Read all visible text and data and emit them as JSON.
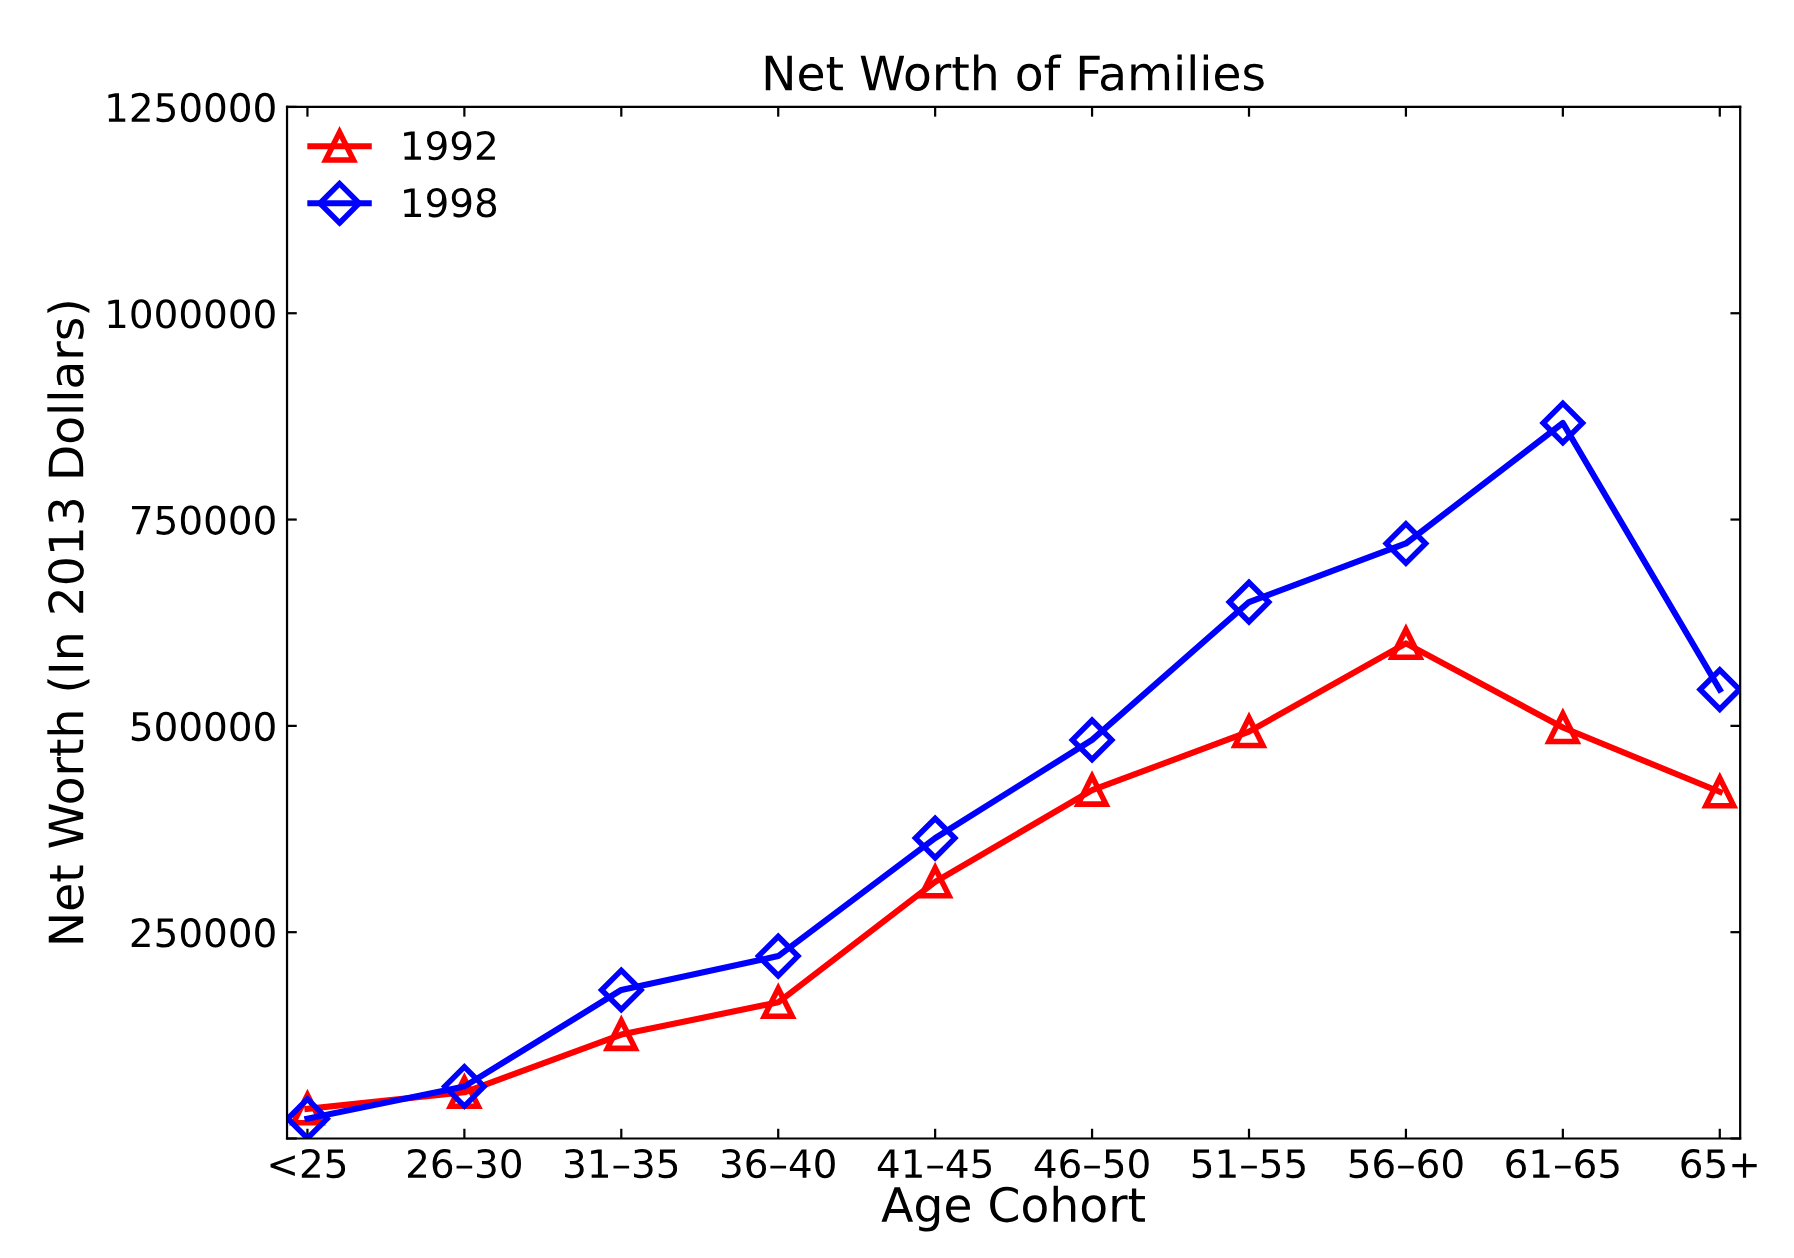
{
  "chart_data": {
    "type": "line",
    "title": "Net Worth of Families",
    "xlabel": "Age Cohort",
    "ylabel": "Net Worth (In 2013 Dollars)",
    "categories": [
      "<25",
      "26–30",
      "31–35",
      "36–40",
      "41–45",
      "46–50",
      "51–55",
      "56–60",
      "61–65",
      "65+"
    ],
    "series": [
      {
        "name": "1992",
        "color": "#ff0000",
        "marker": "triangle",
        "values": [
          36000,
          56000,
          126000,
          165000,
          311000,
          422000,
          493000,
          600000,
          498000,
          420000
        ]
      },
      {
        "name": "1998",
        "color": "#0000ff",
        "marker": "diamond",
        "values": [
          24000,
          63000,
          180000,
          221000,
          364000,
          483000,
          650000,
          721000,
          867000,
          544000
        ]
      }
    ],
    "ylim": [
      0,
      1250000
    ],
    "yticks": [
      {
        "value": 0,
        "label": null
      },
      250000,
      500000,
      750000,
      1000000,
      1250000
    ],
    "grid": false,
    "legend": "top left",
    "line_style": "solid"
  }
}
